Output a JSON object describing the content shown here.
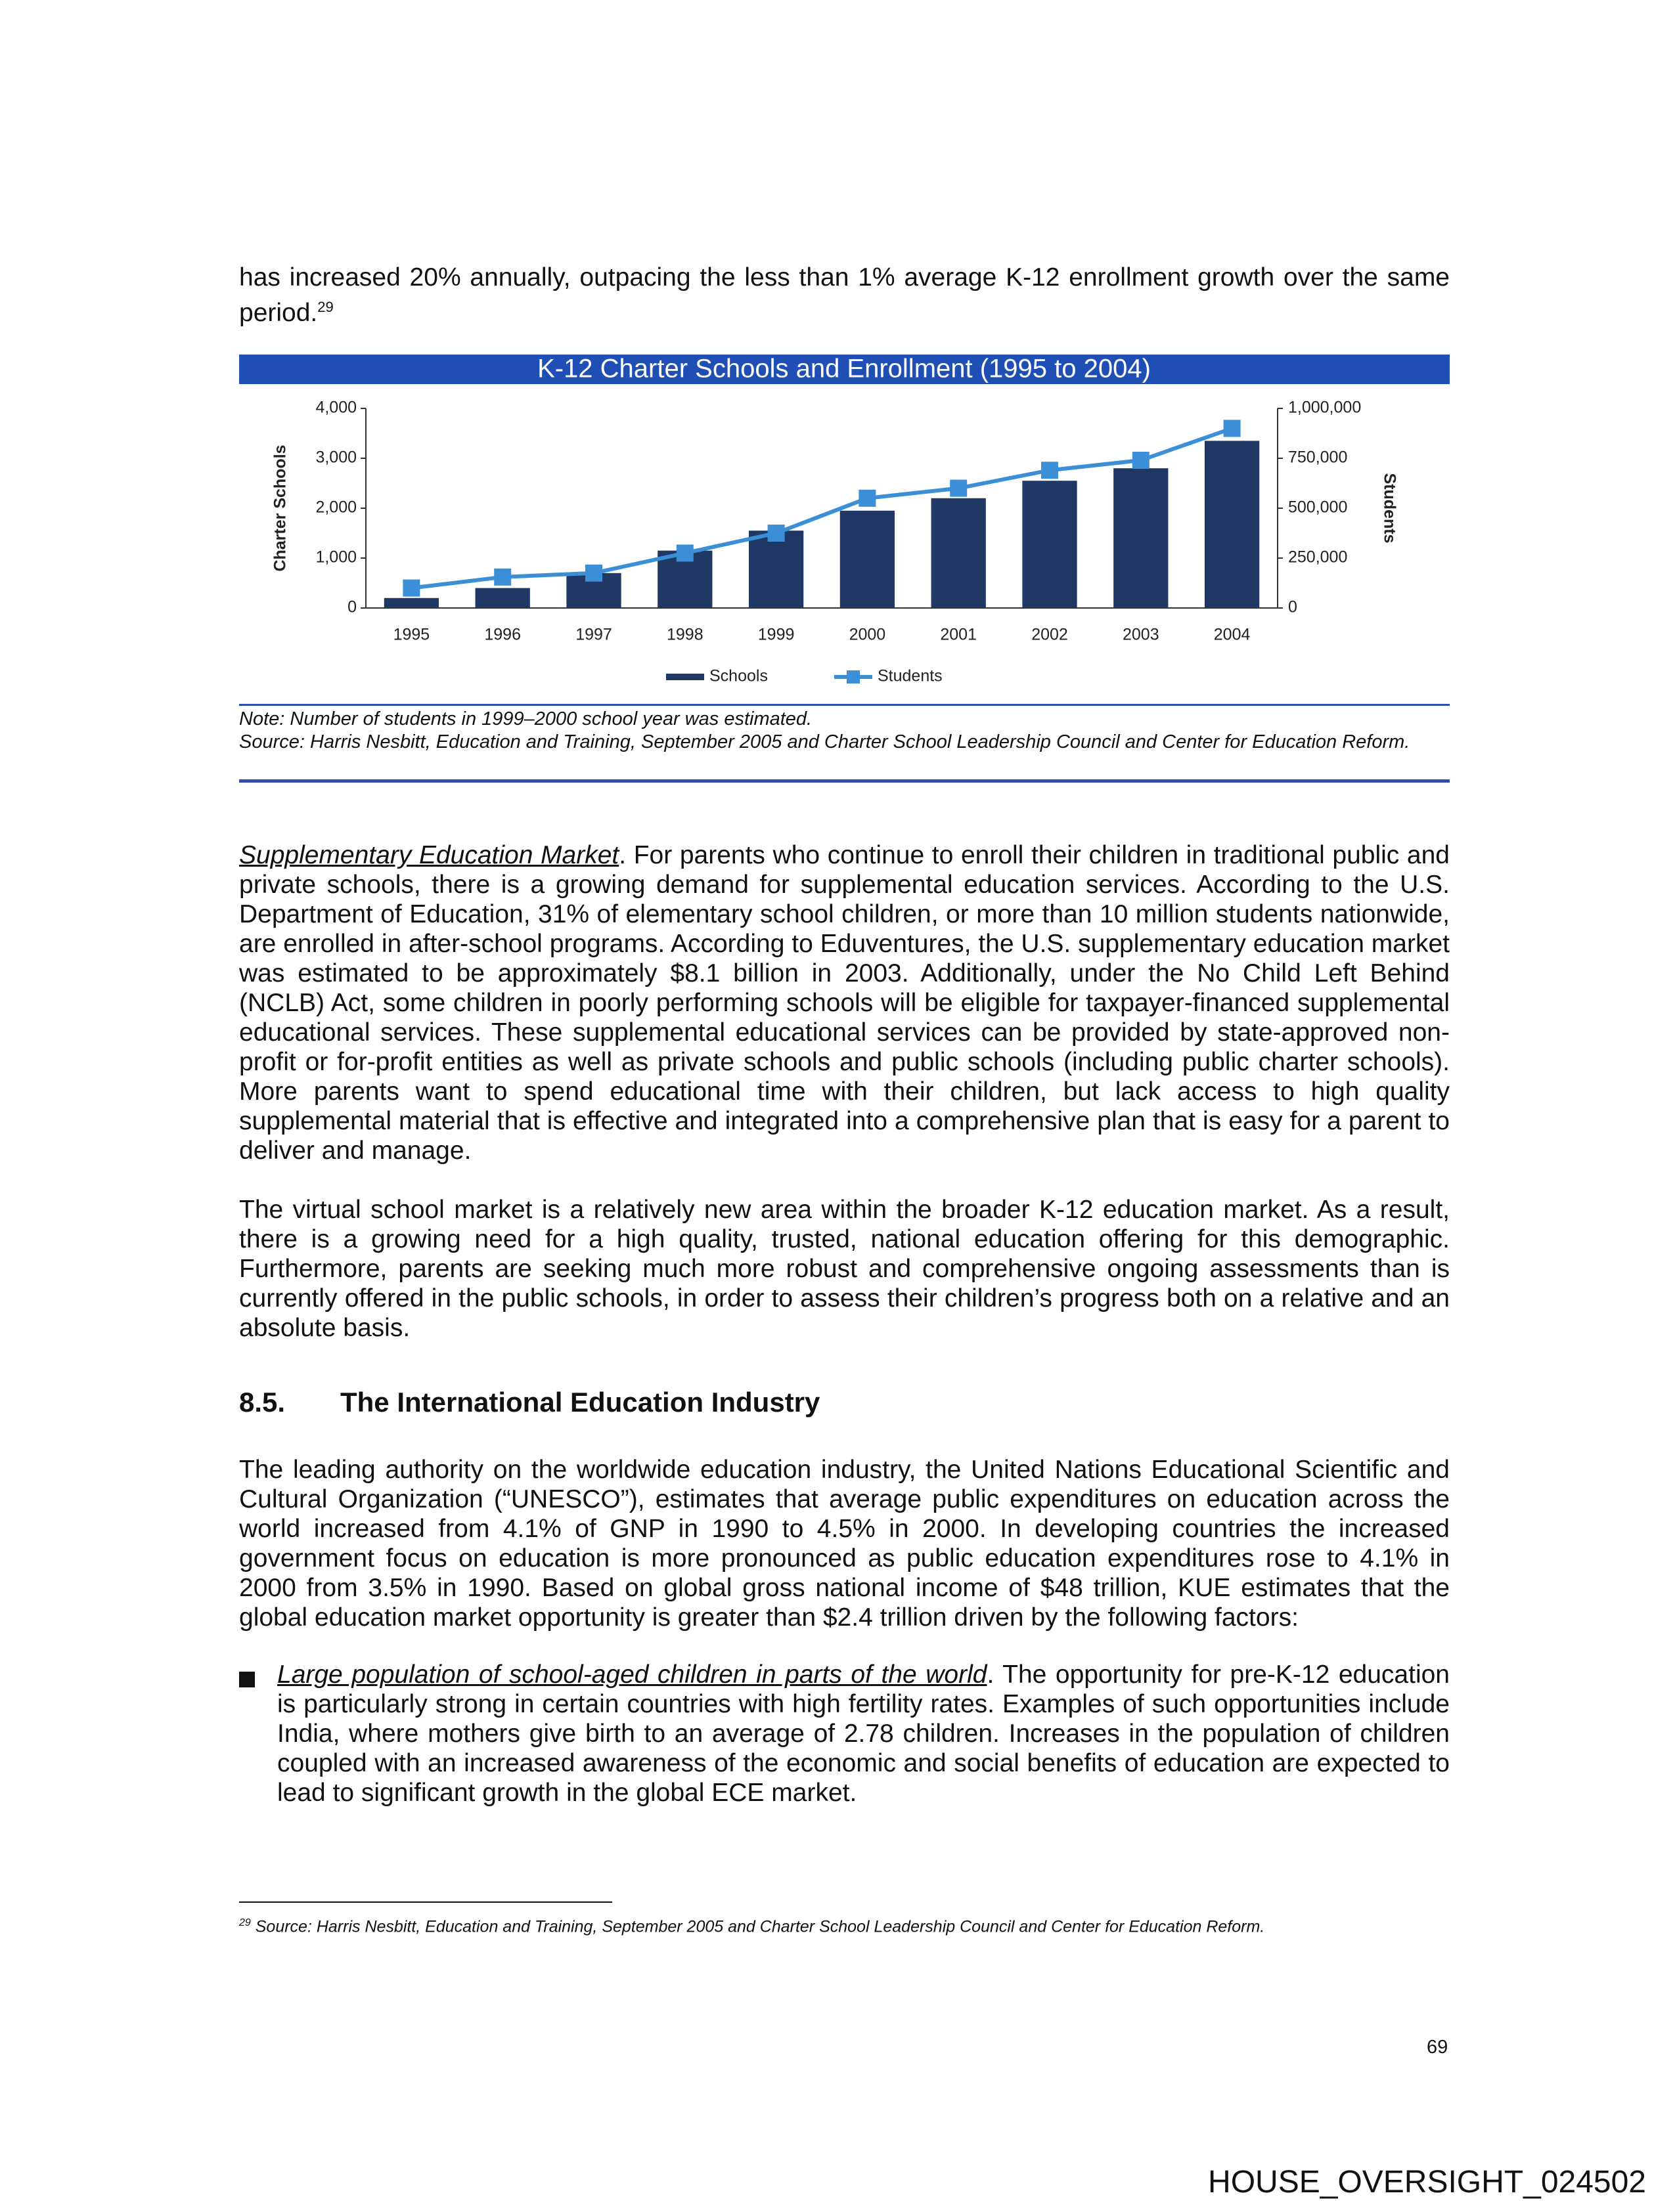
{
  "intro": {
    "text": "has increased 20% annually, outpacing the less than 1% average K-12 enrollment growth over the same period.",
    "footnote_ref": "29"
  },
  "chart_data": {
    "type": "bar",
    "title": "K-12 Charter Schools and Enrollment (1995 to 2004)",
    "categories": [
      "1995",
      "1996",
      "1997",
      "1998",
      "1999",
      "2000",
      "2001",
      "2002",
      "2003",
      "2004"
    ],
    "series": [
      {
        "name": "Schools",
        "type": "bar",
        "color": "#1f3864",
        "values": [
          200,
          400,
          700,
          1150,
          1550,
          1950,
          2200,
          2550,
          2800,
          3350
        ]
      },
      {
        "name": "Students",
        "type": "line",
        "axis": "y2",
        "color": "#3a8fd6",
        "values": [
          100000,
          155000,
          175000,
          275000,
          375000,
          550000,
          600000,
          690000,
          740000,
          900000
        ]
      }
    ],
    "ylabel": "Charter Schools",
    "y2label": "Students",
    "ylim": [
      0,
      4000
    ],
    "yticks": [
      0,
      {
        "value": 1000,
        "label": "1,000"
      },
      {
        "value": 2000,
        "label": "2,000"
      },
      {
        "value": 3000,
        "label": "3,000"
      },
      {
        "value": 4000,
        "label": "4,000"
      }
    ],
    "y2lim": [
      0,
      1000000
    ],
    "y2ticks": [
      0,
      {
        "value": 250000,
        "label": "250,000"
      },
      {
        "value": 500000,
        "label": "500,000"
      },
      {
        "value": 750000,
        "label": "750,000"
      },
      {
        "value": 1000000,
        "label": "1,000,000"
      }
    ],
    "grid": false
  },
  "chart_note": {
    "note": "Note: Number of students in 1999–2000 school year was estimated.",
    "source": "Source:  Harris Nesbitt, Education and Training, September 2005 and Charter School Leadership Council and Center for Education Reform."
  },
  "supplementary": {
    "lead": "Supplementary Education Market",
    "text": ".  For parents who continue to enroll their children in traditional public and private schools, there is a growing demand for supplemental education services.  According to the U.S. Department of Education, 31% of elementary school children, or more than 10 million students nationwide, are enrolled in after-school programs.  According to Eduventures, the U.S. supplementary education market was estimated to be approximately $8.1 billion in 2003.  Additionally, under the No Child Left Behind (NCLB) Act, some children in poorly performing schools will be eligible for taxpayer-financed supplemental educational services.  These supplemental educational services can be provided by state-approved non-profit or for-profit entities as well as private schools and public schools (including public charter schools).  More parents want to spend educational time with their children, but lack access to high quality supplemental material that is effective and integrated into a comprehensive plan that is easy for a parent to deliver and manage."
  },
  "virtual": "The virtual school market is a relatively new area within the broader K-12 education market.  As a result, there is a growing need for a high quality, trusted, national education offering for this demographic.  Furthermore, parents are seeking much more robust and comprehensive ongoing assessments than is currently offered in the public schools, in order to assess their children’s progress both on a relative and an absolute basis.",
  "section": {
    "number": "8.5.",
    "title": "The International Education Industry"
  },
  "unesco": "The leading authority on the worldwide education industry, the United Nations Educational Scientific and Cultural Organization (“UNESCO”), estimates that average public expenditures on education across the world increased from 4.1% of GNP in 1990 to 4.5% in 2000.  In developing countries the increased government focus on education is more pronounced as public education expenditures rose to 4.1% in 2000 from 3.5% in 1990.  Based on global gross national income of $48 trillion, KUE estimates that the global education market opportunity is greater than $2.4 trillion driven by the following factors:",
  "bullets": [
    {
      "lead": "Large population of school-aged children in parts of the world",
      "text": ".  The opportunity for pre-K-12 education is particularly strong in certain countries with high fertility rates.  Examples of such opportunities include India, where mothers give birth to an average of 2.78 children.  Increases in the population of children coupled with an increased awareness of the economic and social benefits of education are expected to lead to significant growth in the global ECE market."
    }
  ],
  "footnote": {
    "ref": "29",
    "text": "Source: Harris Nesbitt, Education and Training, September 2005 and Charter School Leadership Council and Center for Education Reform."
  },
  "page_number": "69",
  "stamp": "HOUSE_OVERSIGHT_024502"
}
